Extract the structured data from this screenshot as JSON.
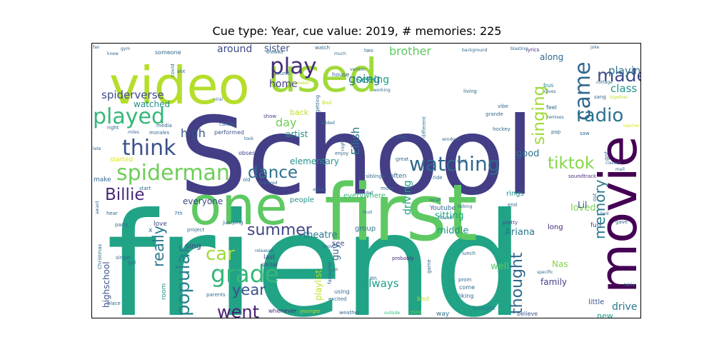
{
  "figure": {
    "title": "Cue type: Year, cue value: 2019, # memories: 225"
  },
  "wordcloud": {
    "colormap": "viridis",
    "words": [
      {
        "text": "friend",
        "color": "#21a386"
      },
      {
        "text": "School",
        "color": "#433e85"
      },
      {
        "text": "first",
        "color": "#5ec962"
      },
      {
        "text": "movie",
        "color": "#440154"
      },
      {
        "text": "one",
        "color": "#5ec962"
      },
      {
        "text": "video",
        "color": "#b5de2b"
      },
      {
        "text": "used",
        "color": "#a0da39"
      },
      {
        "text": "played",
        "color": "#35b779"
      },
      {
        "text": "think",
        "color": "#3b528b"
      },
      {
        "text": "spiderman",
        "color": "#6ece58"
      },
      {
        "text": "play",
        "color": "#472d7b"
      },
      {
        "text": "watching",
        "color": "#31688e"
      },
      {
        "text": "grade",
        "color": "#35b779"
      },
      {
        "text": "came",
        "color": "#31688e"
      },
      {
        "text": "made",
        "color": "#3e4a89"
      },
      {
        "text": "radio",
        "color": "#2c728e"
      },
      {
        "text": "singing",
        "color": "#a0da39"
      },
      {
        "text": "tiktok",
        "color": "#86d549"
      },
      {
        "text": "dance",
        "color": "#2c728e"
      },
      {
        "text": "Billie",
        "color": "#482878"
      },
      {
        "text": "summer",
        "color": "#414487"
      },
      {
        "text": "car",
        "color": "#a0da39"
      },
      {
        "text": "popular",
        "color": "#26828e"
      },
      {
        "text": "really",
        "color": "#2a788e"
      },
      {
        "text": "memory",
        "color": "#2a788e"
      },
      {
        "text": "thought",
        "color": "#31688e"
      },
      {
        "text": "went",
        "color": "#482173"
      },
      {
        "text": "year",
        "color": "#3b528b"
      },
      {
        "text": "spiderverse",
        "color": "#3e4a89"
      },
      {
        "text": "high",
        "color": "#3b528b"
      },
      {
        "text": "brother",
        "color": "#5ec962"
      },
      {
        "text": "going",
        "color": "#2a788e"
      },
      {
        "text": "day",
        "color": "#6ece58"
      },
      {
        "text": "class",
        "color": "#21918c"
      },
      {
        "text": "playing",
        "color": "#2c728e"
      },
      {
        "text": "watched",
        "color": "#21918c"
      },
      {
        "text": "Eilish",
        "color": "#2a788e"
      },
      {
        "text": "always",
        "color": "#1f9e89"
      },
      {
        "text": "driving",
        "color": "#1f9e89"
      },
      {
        "text": "around",
        "color": "#3e4a89"
      },
      {
        "text": "sister",
        "color": "#3b528b"
      },
      {
        "text": "home",
        "color": "#433e85"
      },
      {
        "text": "seeing",
        "color": "#1f9e89"
      },
      {
        "text": "artist",
        "color": "#21918c"
      },
      {
        "text": "elementary",
        "color": "#21918c"
      },
      {
        "text": "everyone",
        "color": "#3e4a89"
      },
      {
        "text": "good",
        "color": "#2c728e"
      },
      {
        "text": "loved",
        "color": "#7ad151"
      },
      {
        "text": "sitting",
        "color": "#21a386"
      },
      {
        "text": "middle",
        "color": "#21918c"
      },
      {
        "text": "theatre",
        "color": "#2a788e"
      },
      {
        "text": "guy",
        "color": "#31688e"
      },
      {
        "text": "Ariana",
        "color": "#2a788e"
      },
      {
        "text": "highschool",
        "color": "#3b528b"
      },
      {
        "text": "playlist",
        "color": "#bddf26"
      },
      {
        "text": "drive",
        "color": "#2a788e"
      },
      {
        "text": "family",
        "color": "#433e85"
      },
      {
        "text": "well",
        "color": "#5ec962"
      },
      {
        "text": "Nas",
        "color": "#86d549"
      },
      {
        "text": "Lil",
        "color": "#3b528b"
      },
      {
        "text": "back",
        "color": "#bddf26"
      },
      {
        "text": "along",
        "color": "#31688e"
      },
      {
        "text": "room",
        "color": "#21918c"
      },
      {
        "text": "sing",
        "color": "#3e4a89"
      },
      {
        "text": "love",
        "color": "#3e4a89"
      },
      {
        "text": "people",
        "color": "#21918c"
      },
      {
        "text": "everywhere",
        "color": "#35b779"
      },
      {
        "text": "group",
        "color": "#2c728e"
      },
      {
        "text": "see",
        "color": "#414487"
      },
      {
        "text": "rings",
        "color": "#21918c"
      },
      {
        "text": "long",
        "color": "#482878"
      },
      {
        "text": "fun",
        "color": "#3e4a89"
      },
      {
        "text": "new",
        "color": "#1f9e89"
      },
      {
        "text": "little",
        "color": "#3b528b"
      },
      {
        "text": "show",
        "color": "#414487"
      },
      {
        "text": "performed",
        "color": "#3b528b"
      },
      {
        "text": "obsessed",
        "color": "#414487"
      },
      {
        "text": "started",
        "color": "#dde318"
      },
      {
        "text": "make",
        "color": "#31688e"
      },
      {
        "text": "last",
        "color": "#414487"
      },
      {
        "text": "social",
        "color": "#414487"
      },
      {
        "text": "come",
        "color": "#31688e"
      },
      {
        "text": "liking",
        "color": "#31688e"
      },
      {
        "text": "prom",
        "color": "#31688e"
      },
      {
        "text": "best",
        "color": "#bddf26"
      },
      {
        "text": "way",
        "color": "#2c728e"
      },
      {
        "text": "brought",
        "color": "#2a788e"
      },
      {
        "text": "believe",
        "color": "#3b528b"
      },
      {
        "text": "whenever",
        "color": "#472d7b"
      },
      {
        "text": "younger",
        "color": "#bddf26"
      },
      {
        "text": "weather",
        "color": "#31688e"
      },
      {
        "text": "outside",
        "color": "#35b779"
      },
      {
        "text": "mind",
        "color": "#7ad151"
      },
      {
        "text": "lunch",
        "color": "#31688e"
      },
      {
        "text": "probably",
        "color": "#482878"
      },
      {
        "text": "Youtube",
        "color": "#31688e"
      },
      {
        "text": "found",
        "color": "#26828e"
      },
      {
        "text": "pretty",
        "color": "#3e4a89"
      },
      {
        "text": "teacher",
        "color": "#dde318"
      },
      {
        "text": "soundtrack",
        "color": "#482878"
      },
      {
        "text": "hockey",
        "color": "#31688e"
      },
      {
        "text": "feel",
        "color": "#31688e"
      },
      {
        "text": "pop",
        "color": "#31688e"
      },
      {
        "text": "saw",
        "color": "#31688e"
      },
      {
        "text": "bus",
        "color": "#26828e"
      },
      {
        "text": "lyrics",
        "color": "#482878"
      },
      {
        "text": "sang",
        "color": "#31688e"
      },
      {
        "text": "together",
        "color": "#bddf26"
      },
      {
        "text": "grande",
        "color": "#31688e"
      },
      {
        "text": "windows",
        "color": "#31688e"
      },
      {
        "text": "different",
        "color": "#2a788e"
      },
      {
        "text": "vibe",
        "color": "#31688e"
      },
      {
        "text": "kind",
        "color": "#31688e"
      },
      {
        "text": "great",
        "color": "#31688e"
      },
      {
        "text": "ride",
        "color": "#31688e"
      },
      {
        "text": "dad",
        "color": "#31688e"
      },
      {
        "text": "mom",
        "color": "#31688e"
      },
      {
        "text": "often",
        "color": "#31688e"
      },
      {
        "text": "siblings",
        "color": "#31688e"
      },
      {
        "text": "enjoy",
        "color": "#31688e"
      },
      {
        "text": "added",
        "color": "#31688e"
      },
      {
        "text": "night",
        "color": "#31688e"
      },
      {
        "text": "Bad",
        "color": "#bddf26"
      },
      {
        "text": "getting",
        "color": "#31688e"
      },
      {
        "text": "took",
        "color": "#31688e"
      },
      {
        "text": "catchy",
        "color": "#31688e"
      },
      {
        "text": "media",
        "color": "#31688e"
      },
      {
        "text": "morales",
        "color": "#31688e"
      },
      {
        "text": "miles",
        "color": "#31688e"
      },
      {
        "text": "right",
        "color": "#31688e"
      },
      {
        "text": "covid",
        "color": "#31688e"
      },
      {
        "text": "alot",
        "color": "#31688e"
      },
      {
        "text": "someone",
        "color": "#31688e"
      },
      {
        "text": "fan",
        "color": "#31688e"
      },
      {
        "text": "gym",
        "color": "#31688e"
      },
      {
        "text": "knew",
        "color": "#31688e"
      },
      {
        "text": "showed",
        "color": "#31688e"
      },
      {
        "text": "watch",
        "color": "#31688e"
      },
      {
        "text": "much",
        "color": "#31688e"
      },
      {
        "text": "two",
        "color": "#31688e"
      },
      {
        "text": "house",
        "color": "#31688e"
      },
      {
        "text": "version",
        "color": "#31688e"
      },
      {
        "text": "working",
        "color": "#31688e"
      },
      {
        "text": "speaker",
        "color": "#bddf26"
      },
      {
        "text": "sound",
        "color": "#31688e"
      },
      {
        "text": "viral",
        "color": "#31688e"
      },
      {
        "text": "background",
        "color": "#31688e"
      },
      {
        "text": "blasting",
        "color": "#31688e"
      },
      {
        "text": "joke",
        "color": "#31688e"
      },
      {
        "text": "cottage",
        "color": "#31688e"
      },
      {
        "text": "living",
        "color": "#31688e"
      },
      {
        "text": "Gives",
        "color": "#31688e"
      },
      {
        "text": "remixes",
        "color": "#31688e"
      },
      {
        "text": "classes",
        "color": "#31688e"
      },
      {
        "text": "mall",
        "color": "#31688e"
      },
      {
        "text": "bed",
        "color": "#31688e"
      },
      {
        "text": "gave",
        "color": "#31688e"
      },
      {
        "text": "table",
        "color": "#31688e"
      },
      {
        "text": "specific",
        "color": "#31688e"
      },
      {
        "text": "game",
        "color": "#31688e"
      },
      {
        "text": "end",
        "color": "#31688e"
      },
      {
        "text": "talking",
        "color": "#31688e"
      },
      {
        "text": "recall",
        "color": "#31688e"
      },
      {
        "text": "sounded",
        "color": "#31688e"
      },
      {
        "text": "loud",
        "color": "#31688e"
      },
      {
        "text": "8th",
        "color": "#31688e"
      },
      {
        "text": "excited",
        "color": "#31688e"
      },
      {
        "text": "using",
        "color": "#31688e"
      },
      {
        "text": "favourite",
        "color": "#31688e"
      },
      {
        "text": "go",
        "color": "#31688e"
      },
      {
        "text": "know",
        "color": "#31688e"
      },
      {
        "text": "album",
        "color": "#31688e"
      },
      {
        "text": "featured",
        "color": "#31688e"
      },
      {
        "text": "old",
        "color": "#31688e"
      },
      {
        "text": "released",
        "color": "#31688e"
      },
      {
        "text": "jumping",
        "color": "#31688e"
      },
      {
        "text": "parents",
        "color": "#31688e"
      },
      {
        "text": "project",
        "color": "#31688e"
      },
      {
        "text": "7th",
        "color": "#31688e"
      },
      {
        "text": "x",
        "color": "#31688e"
      },
      {
        "text": "party",
        "color": "#31688e"
      },
      {
        "text": "hear",
        "color": "#31688e"
      },
      {
        "text": "award",
        "color": "#31688e"
      },
      {
        "text": "Christmas",
        "color": "#31688e"
      },
      {
        "text": "singer",
        "color": "#31688e"
      },
      {
        "text": "girl",
        "color": "#31688e"
      },
      {
        "text": "place",
        "color": "#31688e"
      },
      {
        "text": "start",
        "color": "#31688e"
      },
      {
        "text": "late",
        "color": "#31688e"
      },
      {
        "text": "got",
        "color": "#31688e"
      },
      {
        "text": "out",
        "color": "#31688e"
      }
    ]
  }
}
